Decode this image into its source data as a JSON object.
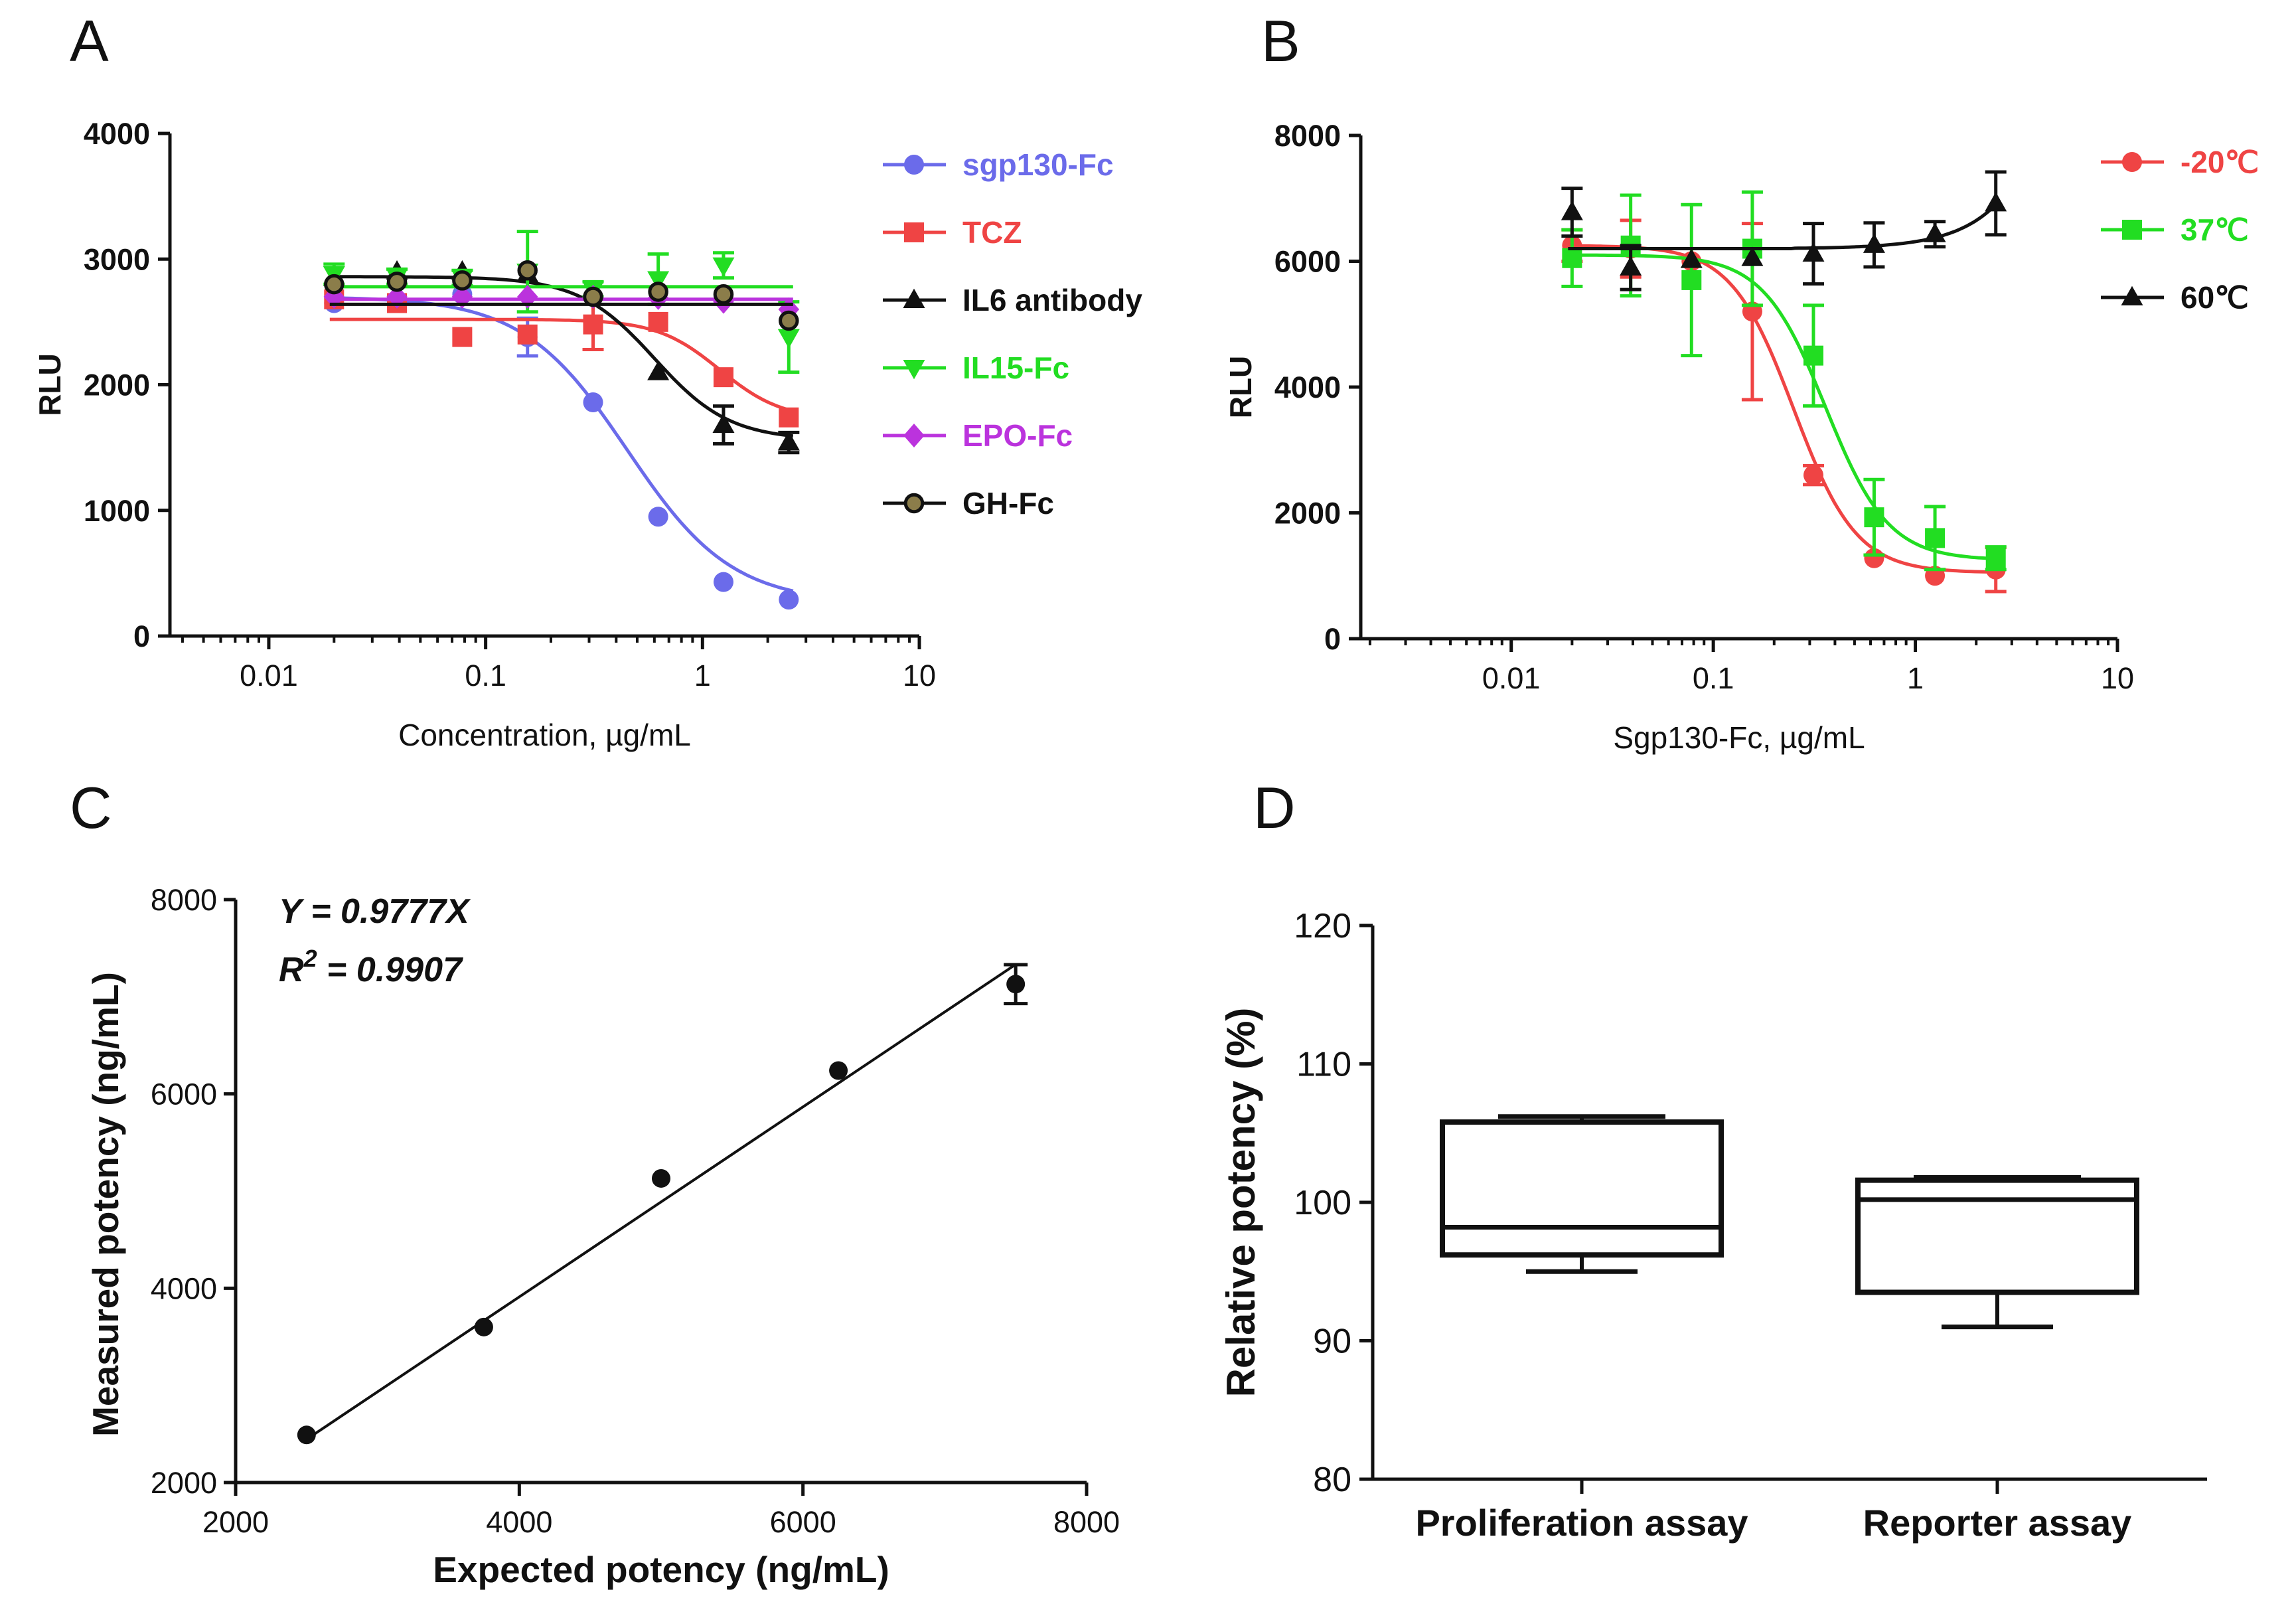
{
  "figure": {
    "panels": [
      {
        "letter": "A"
      },
      {
        "letter": "B"
      },
      {
        "letter": "C"
      },
      {
        "letter": "D"
      }
    ]
  },
  "chart_data": [
    {
      "panel": "A",
      "type": "line",
      "xscale": "log",
      "xlabel": "Concentration, µg/mL",
      "ylabel": "RLU",
      "xlim": [
        0.0035,
        10
      ],
      "ylim": [
        0,
        4000
      ],
      "xticks": [
        {
          "v": 0.01,
          "label": "0.01"
        },
        {
          "v": 0.1,
          "label": "0.1"
        },
        {
          "v": 1,
          "label": "1"
        },
        {
          "v": 10,
          "label": "10"
        }
      ],
      "yticks": [
        {
          "v": 0,
          "label": "0"
        },
        {
          "v": 1000,
          "label": "1000"
        },
        {
          "v": 2000,
          "label": "2000"
        },
        {
          "v": 3000,
          "label": "3000"
        },
        {
          "v": 4000,
          "label": "4000"
        }
      ],
      "legend_position": "top-right",
      "series": [
        {
          "name": "sgp130-Fc",
          "color": "#6b6bea",
          "marker": "circle",
          "x": [
            0.02,
            0.039,
            0.078,
            0.156,
            0.313,
            0.625,
            1.25,
            2.5
          ],
          "y": [
            2650,
            2660,
            2720,
            2380,
            1860,
            950,
            430,
            290
          ],
          "err": [
            0,
            0,
            0,
            150,
            0,
            0,
            0,
            0
          ],
          "fit": {
            "top": 2700,
            "bottom": 260,
            "ec50": 0.45,
            "hill": 1.8
          }
        },
        {
          "name": "TCZ",
          "color": "#ef4444",
          "marker": "square",
          "x": [
            0.02,
            0.039,
            0.078,
            0.156,
            0.313,
            0.625,
            1.25,
            2.5
          ],
          "y": [
            2680,
            2650,
            2380,
            2400,
            2480,
            2500,
            2060,
            1740
          ],
          "err": [
            0,
            0,
            0,
            0,
            200,
            0,
            0,
            0
          ],
          "fit": {
            "top": 2520,
            "bottom": 1720,
            "ec50": 1.2,
            "hill": 3
          }
        },
        {
          "name": "IL6 antibody",
          "color": "#111111",
          "marker": "triangle",
          "x": [
            0.02,
            0.039,
            0.078,
            0.156,
            0.313,
            0.625,
            1.25,
            2.5
          ],
          "y": [
            2850,
            2900,
            2900,
            2880,
            2740,
            2100,
            1680,
            1540
          ],
          "err": [
            0,
            0,
            0,
            0,
            0,
            0,
            150,
            80
          ],
          "fit": {
            "top": 2860,
            "bottom": 1560,
            "ec50": 0.6,
            "hill": 2.5
          }
        },
        {
          "name": "IL15-Fc",
          "color": "#22dd22",
          "marker": "triangle-down",
          "x": [
            0.02,
            0.039,
            0.078,
            0.156,
            0.313,
            0.625,
            1.25,
            2.5
          ],
          "y": [
            2880,
            2860,
            2850,
            2900,
            2760,
            2840,
            2950,
            2380
          ],
          "err": [
            80,
            60,
            60,
            320,
            60,
            200,
            100,
            280
          ],
          "fit": {
            "flat": 2780
          }
        },
        {
          "name": "EPO-Fc",
          "color": "#bb33dd",
          "marker": "diamond",
          "x": [
            0.02,
            0.039,
            0.078,
            0.156,
            0.313,
            0.625,
            1.25,
            2.5
          ],
          "y": [
            2700,
            2700,
            2700,
            2700,
            2700,
            2690,
            2660,
            2600
          ],
          "err": [
            0,
            0,
            0,
            0,
            0,
            0,
            0,
            0
          ],
          "fit": {
            "flat": 2680
          }
        },
        {
          "name": "GH-Fc",
          "color": "#111111",
          "fill": "#8b7d4a",
          "marker": "circle-open",
          "x": [
            0.02,
            0.039,
            0.078,
            0.156,
            0.313,
            0.625,
            1.25,
            2.5
          ],
          "y": [
            2800,
            2820,
            2830,
            2910,
            2700,
            2740,
            2720,
            2510
          ],
          "err": [
            0,
            0,
            0,
            0,
            0,
            0,
            0,
            0
          ],
          "fit": {
            "flat": 2640
          }
        }
      ]
    },
    {
      "panel": "B",
      "type": "line",
      "xscale": "log",
      "xlabel": "Sgp130-Fc, µg/mL",
      "ylabel": "RLU",
      "xlim": [
        0.0018,
        10
      ],
      "ylim": [
        0,
        8000
      ],
      "xticks": [
        {
          "v": 0.01,
          "label": "0.01"
        },
        {
          "v": 0.1,
          "label": "0.1"
        },
        {
          "v": 1,
          "label": "1"
        },
        {
          "v": 10,
          "label": "10"
        }
      ],
      "yticks": [
        {
          "v": 0,
          "label": "0"
        },
        {
          "v": 2000,
          "label": "2000"
        },
        {
          "v": 4000,
          "label": "4000"
        },
        {
          "v": 6000,
          "label": "6000"
        },
        {
          "v": 8000,
          "label": "8000"
        }
      ],
      "legend_position": "top-right",
      "series": [
        {
          "name": "-20℃",
          "color": "#ef4444",
          "marker": "circle",
          "x": [
            0.02,
            0.039,
            0.078,
            0.156,
            0.313,
            0.625,
            1.25,
            2.5
          ],
          "y": [
            6250,
            6200,
            6000,
            5200,
            2600,
            1280,
            1000,
            1100
          ],
          "err": [
            250,
            450,
            0,
            1400,
            150,
            0,
            0,
            350
          ],
          "fit": {
            "top": 6250,
            "bottom": 1050,
            "ec50": 0.25,
            "hill": 2.8
          }
        },
        {
          "name": "37℃",
          "color": "#22dd22",
          "marker": "square",
          "x": [
            0.02,
            0.039,
            0.078,
            0.156,
            0.313,
            0.625,
            1.25,
            2.5
          ],
          "y": [
            6050,
            6250,
            5700,
            6200,
            4500,
            1930,
            1600,
            1280
          ],
          "err": [
            450,
            800,
            1200,
            900,
            800,
            600,
            500,
            180
          ],
          "fit": {
            "top": 6100,
            "bottom": 1250,
            "ec50": 0.36,
            "hill": 2.8
          }
        },
        {
          "name": "60℃",
          "color": "#111111",
          "marker": "triangle",
          "x": [
            0.02,
            0.039,
            0.078,
            0.156,
            0.313,
            0.625,
            1.25,
            2.5
          ],
          "y": [
            6780,
            5900,
            6020,
            6050,
            6120,
            6260,
            6430,
            6920
          ],
          "err": [
            380,
            350,
            0,
            0,
            480,
            350,
            200,
            500
          ],
          "fit": {
            "poly": [
              6200,
              0,
              0,
              6200,
              1.25,
              6420,
              2.5,
              6900
            ]
          }
        }
      ]
    },
    {
      "panel": "C",
      "type": "scatter",
      "xlabel": "Expected potency (ng/mL)",
      "ylabel": "Measured potency (ng/mL)",
      "xlim": [
        2000,
        8000
      ],
      "ylim": [
        2000,
        8000
      ],
      "xticks": [
        {
          "v": 2000,
          "label": "2000"
        },
        {
          "v": 4000,
          "label": "4000"
        },
        {
          "v": 6000,
          "label": "6000"
        },
        {
          "v": 8000,
          "label": "8000"
        }
      ],
      "yticks": [
        {
          "v": 2000,
          "label": "2000"
        },
        {
          "v": 4000,
          "label": "4000"
        },
        {
          "v": 6000,
          "label": "6000"
        },
        {
          "v": 8000,
          "label": "8000"
        }
      ],
      "x": [
        2500,
        3750,
        5000,
        6250,
        7500
      ],
      "y": [
        2490,
        3600,
        5130,
        6240,
        7130
      ],
      "err": [
        0,
        0,
        0,
        0,
        200
      ],
      "fit": {
        "slope": 0.9777,
        "x_from": 2500,
        "x_to": 7500
      },
      "equation": "Y = 0.9777X",
      "r2_prefix": "R",
      "r2_sup": "2",
      "r2_suffix": " = 0.9907"
    },
    {
      "panel": "D",
      "type": "box",
      "xlabel": "",
      "ylabel": "Relative potency (%)",
      "ylim": [
        80,
        120
      ],
      "yticks": [
        {
          "v": 80,
          "label": "80"
        },
        {
          "v": 90,
          "label": "90"
        },
        {
          "v": 100,
          "label": "100"
        },
        {
          "v": 110,
          "label": "110"
        },
        {
          "v": 120,
          "label": "120"
        }
      ],
      "categories": [
        "Proliferation assay",
        "Reporter assay"
      ],
      "boxes": [
        {
          "min": 95.0,
          "q1": 96.2,
          "median": 98.2,
          "q3": 105.8,
          "max": 106.2
        },
        {
          "min": 91.0,
          "q1": 93.5,
          "median": 100.2,
          "q3": 101.6,
          "max": 101.8
        }
      ]
    }
  ]
}
